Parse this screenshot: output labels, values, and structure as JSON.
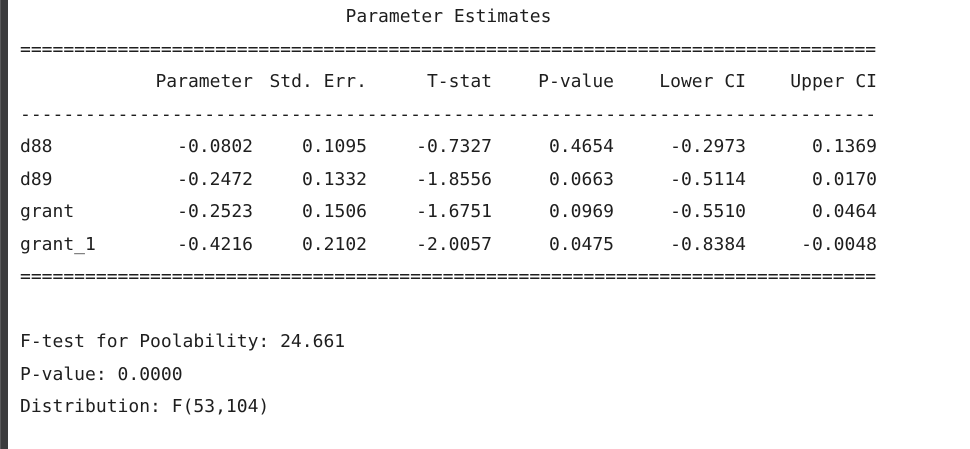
{
  "colors": {
    "background": "#ffffff",
    "text": "#1e1e1e",
    "left_bar": "#3b3b3d"
  },
  "report": {
    "title": "Parameter Estimates",
    "separators": {
      "heavy": "===============================================================================",
      "light": "-------------------------------------------------------------------------------"
    },
    "table": {
      "headers": [
        "Parameter",
        "Std. Err.",
        "T-stat",
        "P-value",
        "Lower CI",
        "Upper CI"
      ],
      "rows": [
        {
          "name": "d88",
          "values": [
            "-0.0802",
            "0.1095",
            "-0.7327",
            "0.4654",
            "-0.2973",
            "0.1369"
          ]
        },
        {
          "name": "d89",
          "values": [
            "-0.2472",
            "0.1332",
            "-1.8556",
            "0.0663",
            "-0.5114",
            "0.0170"
          ]
        },
        {
          "name": "grant",
          "values": [
            "-0.2523",
            "0.1506",
            "-1.6751",
            "0.0969",
            "-0.5510",
            "0.0464"
          ]
        },
        {
          "name": "grant_1",
          "values": [
            "-0.4216",
            "0.2102",
            "-2.0057",
            "0.0475",
            "-0.8384",
            "-0.0048"
          ]
        }
      ]
    },
    "footer": [
      {
        "label": "F-test for Poolability:",
        "value": "24.661"
      },
      {
        "label": "P-value:",
        "value": "0.0000"
      },
      {
        "label": "Distribution:",
        "value": "F(53,104)"
      }
    ]
  }
}
